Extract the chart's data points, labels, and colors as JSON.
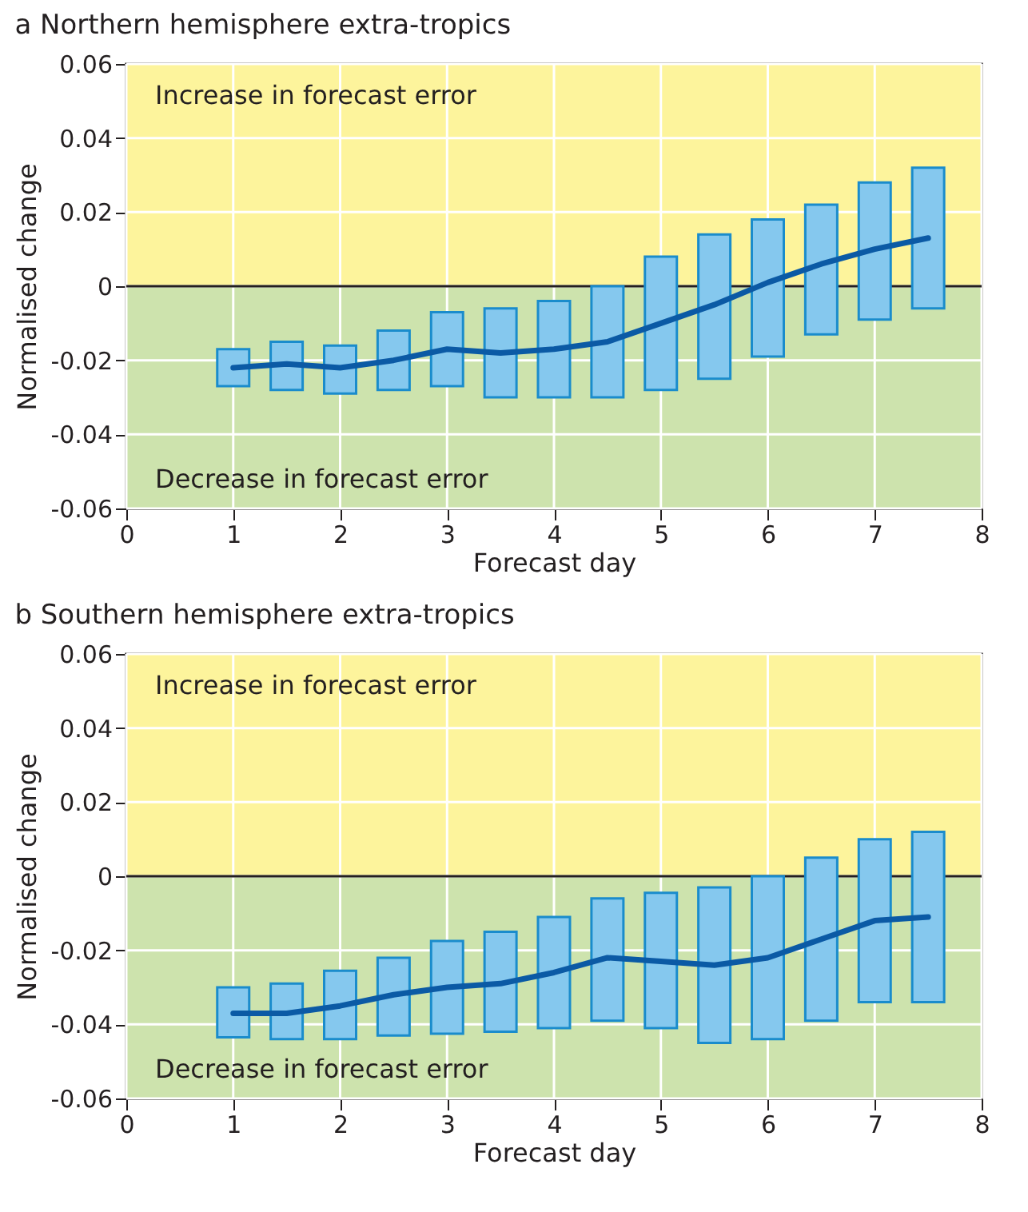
{
  "chart_data": [
    {
      "type": "bar",
      "title": "a Northern hemisphere extra-tropics",
      "xlabel": "Forecast day",
      "ylabel": "Normalised change",
      "x": [
        1,
        1.5,
        2,
        2.5,
        3,
        3.5,
        4,
        4.5,
        5,
        5.5,
        6,
        6.5,
        7,
        7.5
      ],
      "series": [
        {
          "type": "bar",
          "color": "#85c8ee",
          "base": [
            -0.027,
            -0.028,
            -0.029,
            -0.028,
            -0.027,
            -0.03,
            -0.03,
            -0.03,
            -0.028,
            -0.025,
            -0.019,
            -0.013,
            -0.009,
            -0.006
          ],
          "values": [
            0.01,
            0.013,
            0.013,
            0.016,
            0.02,
            0.024,
            0.026,
            0.03,
            0.036,
            0.039,
            0.037,
            0.035,
            0.037,
            0.038
          ]
        },
        {
          "type": "line",
          "color": "#0b5aa5",
          "values": [
            -0.022,
            -0.021,
            -0.022,
            -0.02,
            -0.017,
            -0.018,
            -0.017,
            -0.015,
            -0.01,
            -0.005,
            0.001,
            0.006,
            0.01,
            0.013
          ]
        }
      ],
      "bands": [
        {
          "axis": "y",
          "from": 0,
          "to": 0.06,
          "label": "Increase in forecast error",
          "color": "#fdf49c"
        },
        {
          "axis": "y",
          "from": -0.06,
          "to": 0,
          "label": "Decrease in forecast error",
          "color": "#cde3ad"
        }
      ],
      "ref_lines": [
        {
          "axis": "y",
          "value": 0,
          "color": "#231f20"
        }
      ],
      "xlim": [
        0,
        8
      ],
      "xticks": [
        0,
        1,
        2,
        3,
        4,
        5,
        6,
        7,
        8
      ],
      "ylim": [
        -0.06,
        0.06
      ],
      "yticks": [
        -0.06,
        -0.04,
        -0.02,
        0,
        0.02,
        0.04,
        0.06
      ],
      "grid": true
    },
    {
      "type": "bar",
      "title": "b Southern hemisphere extra-tropics",
      "xlabel": "Forecast day",
      "ylabel": "Normalised change",
      "x": [
        1,
        1.5,
        2,
        2.5,
        3,
        3.5,
        4,
        4.5,
        5,
        5.5,
        6,
        6.5,
        7,
        7.5
      ],
      "series": [
        {
          "type": "bar",
          "color": "#85c8ee",
          "base": [
            -0.0435,
            -0.044,
            -0.044,
            -0.043,
            -0.0425,
            -0.042,
            -0.041,
            -0.039,
            -0.041,
            -0.045,
            -0.044,
            -0.039,
            -0.034,
            -0.034
          ],
          "values": [
            0.0135,
            0.015,
            0.0185,
            0.021,
            0.025,
            0.027,
            0.03,
            0.033,
            0.0365,
            0.042,
            0.044,
            0.044,
            0.044,
            0.046
          ]
        },
        {
          "type": "line",
          "color": "#0b5aa5",
          "values": [
            -0.037,
            -0.037,
            -0.035,
            -0.032,
            -0.03,
            -0.029,
            -0.026,
            -0.022,
            -0.023,
            -0.024,
            -0.022,
            -0.017,
            -0.012,
            -0.011
          ]
        }
      ],
      "bands": [
        {
          "axis": "y",
          "from": 0,
          "to": 0.06,
          "label": "Increase in forecast error",
          "color": "#fdf49c"
        },
        {
          "axis": "y",
          "from": -0.06,
          "to": 0,
          "label": "Decrease in forecast error",
          "color": "#cde3ad"
        }
      ],
      "ref_lines": [
        {
          "axis": "y",
          "value": 0,
          "color": "#231f20"
        }
      ],
      "xlim": [
        0,
        8
      ],
      "xticks": [
        0,
        1,
        2,
        3,
        4,
        5,
        6,
        7,
        8
      ],
      "ylim": [
        -0.06,
        0.06
      ],
      "yticks": [
        -0.06,
        -0.04,
        -0.02,
        0,
        0.02,
        0.04,
        0.06
      ],
      "grid": true
    }
  ]
}
